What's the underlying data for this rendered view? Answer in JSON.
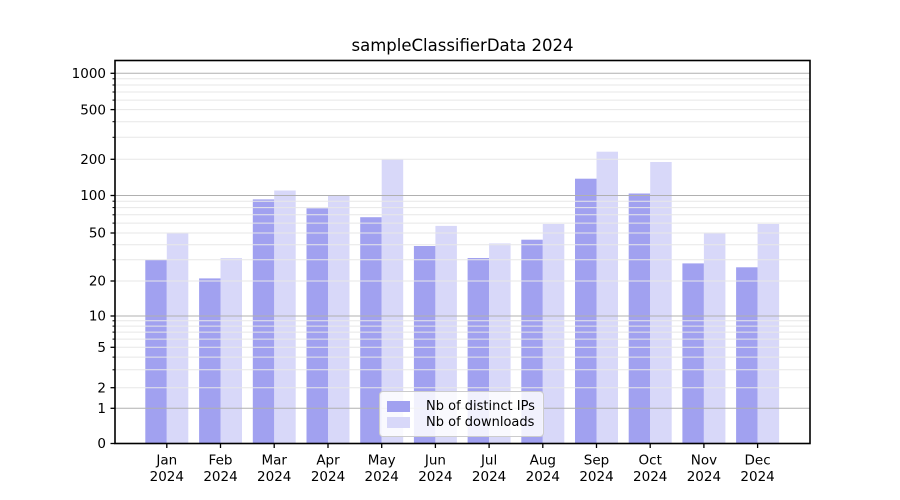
{
  "title": "sampleClassifierData 2024",
  "chart_data": {
    "type": "bar",
    "title": "sampleClassifierData 2024",
    "categories": [
      "Jan",
      "Feb",
      "Mar",
      "Apr",
      "May",
      "Jun",
      "Jul",
      "Aug",
      "Sep",
      "Oct",
      "Nov",
      "Dec"
    ],
    "category_year": "2024",
    "series": [
      {
        "name": "Nb of distinct IPs",
        "color": "#a1a1f0",
        "values": [
          30,
          21,
          93,
          79,
          67,
          39,
          31,
          44,
          138,
          104,
          28,
          26
        ]
      },
      {
        "name": "Nb of downloads",
        "color": "#d8d8f9",
        "values": [
          50,
          31,
          110,
          100,
          200,
          57,
          41,
          59,
          230,
          190,
          50,
          59
        ]
      }
    ],
    "yscale": "symlog",
    "ytick_labels": [
      0,
      1,
      2,
      5,
      10,
      20,
      50,
      100,
      200,
      500,
      1000
    ],
    "ylim": [
      0,
      1300
    ],
    "grid": true,
    "grid_major_at": [
      1,
      10,
      100,
      1000
    ],
    "legend_position": "lower-center"
  },
  "colors": {
    "bar_dark": "#a1a1f0",
    "bar_light": "#d8d8f9",
    "grid_major": "#b0b0b0",
    "grid_minor": "#e7e7e7",
    "axis": "#000000",
    "text": "#000000"
  }
}
